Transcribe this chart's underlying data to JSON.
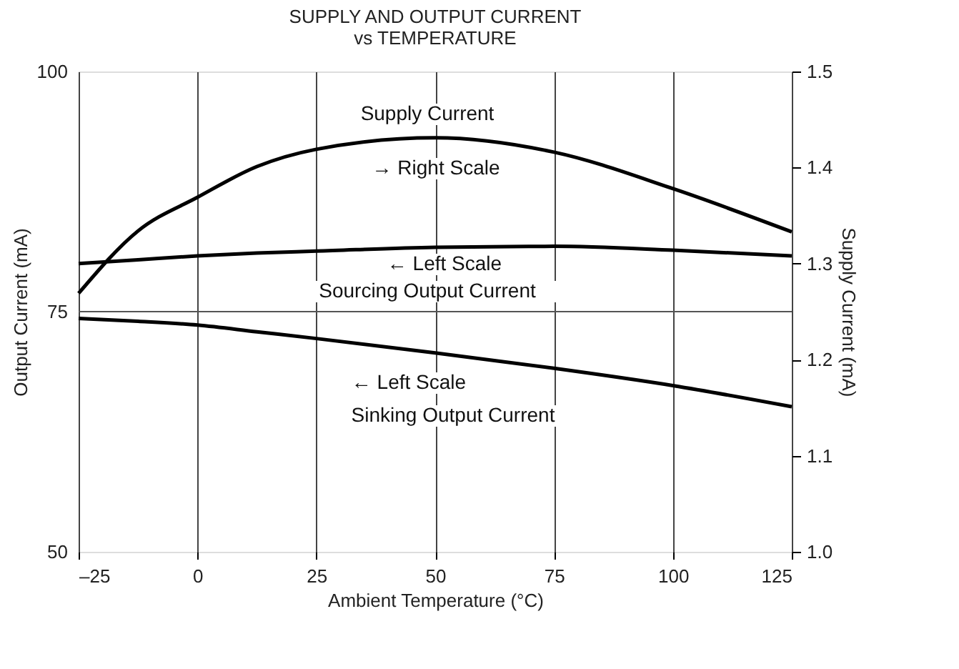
{
  "chart_data": {
    "type": "line",
    "title": "SUPPLY AND OUTPUT CURRENT\nvs TEMPERATURE",
    "xlabel": "Ambient Temperature (°C)",
    "ylabel": "Output Current (mA)",
    "y2label": "Supply Current (mA)",
    "x": [
      -25,
      -12.5,
      0,
      12.5,
      25,
      50,
      75,
      100,
      125
    ],
    "series": [
      {
        "color": "#000000",
        "axis": "y2",
        "values": [
          1.269,
          1.334,
          1.369,
          1.401,
          1.419,
          1.431,
          1.416,
          1.378,
          1.333
        ]
      },
      {
        "color": "#000000",
        "values": [
          80.0,
          80.4,
          80.8,
          81.1,
          81.3,
          81.7,
          81.8,
          81.4,
          80.8
        ]
      },
      {
        "color": "#000000",
        "values": [
          74.3,
          74.0,
          73.6,
          72.9,
          72.2,
          70.7,
          69.1,
          67.3,
          65.1
        ]
      }
    ],
    "xlim": [
      -25,
      125
    ],
    "xticks": [
      {
        "value": -25,
        "label": "–25"
      },
      0,
      25,
      50,
      75,
      100,
      125
    ],
    "ylim": [
      50,
      100
    ],
    "yticks": [
      50,
      75,
      100
    ],
    "y2lim": [
      1.0,
      1.5
    ],
    "y2ticks": [
      {
        "value": 1.0,
        "label": "1.0"
      },
      1.1,
      1.2,
      1.3,
      1.4,
      {
        "value": 1.5,
        "label": "1.5"
      }
    ],
    "grid": "x",
    "ref_lines": [
      {
        "axis": "y",
        "value": 75,
        "color": "#555555"
      }
    ],
    "annotations": [
      "Supply Current",
      "→ Right Scale",
      "← Left Scale",
      "Sourcing Output Current",
      "← Left Scale",
      "Sinking Output Current"
    ]
  }
}
